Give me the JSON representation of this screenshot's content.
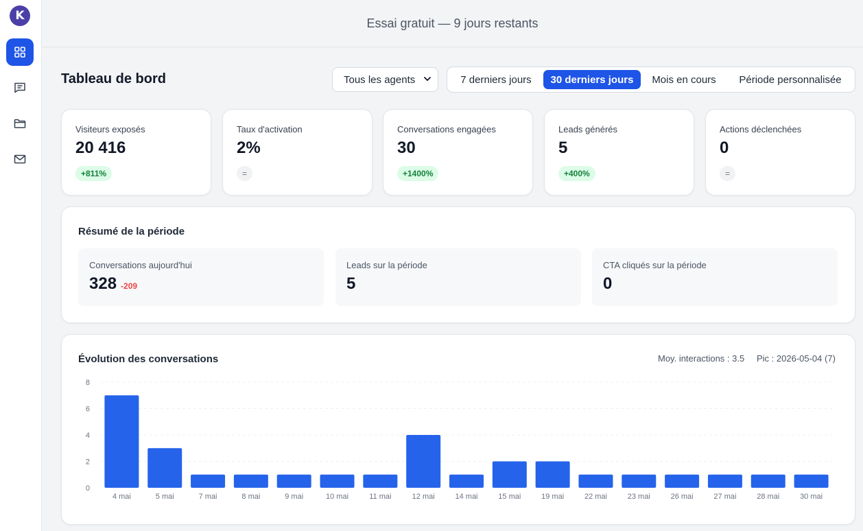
{
  "logo": {
    "letter": "K"
  },
  "sidebar": {
    "items": [
      {
        "icon": "grid-icon",
        "active": true
      },
      {
        "icon": "chat-icon",
        "active": false
      },
      {
        "icon": "folder-icon",
        "active": false
      },
      {
        "icon": "mail-icon",
        "active": false
      }
    ]
  },
  "banner": {
    "text": "Essai gratuit — 9 jours restants"
  },
  "header": {
    "title": "Tableau de bord",
    "agent_select": "Tous les agents",
    "periods": [
      "7 derniers jours",
      "30 derniers jours",
      "Mois en cours",
      "Période personnalisée"
    ],
    "active_period": "30 derniers jours"
  },
  "kpis": [
    {
      "label": "Visiteurs exposés",
      "value": "20 416",
      "badge": "+811%",
      "trend": "up"
    },
    {
      "label": "Taux d'activation",
      "value": "2%",
      "badge": "=",
      "trend": "flat"
    },
    {
      "label": "Conversations engagées",
      "value": "30",
      "badge": "+1400%",
      "trend": "up"
    },
    {
      "label": "Leads générés",
      "value": "5",
      "badge": "+400%",
      "trend": "up"
    },
    {
      "label": "Actions déclenchées",
      "value": "0",
      "badge": "=",
      "trend": "flat"
    }
  ],
  "summary": {
    "title": "Résumé de la période",
    "items": [
      {
        "label": "Conversations aujourd'hui",
        "value": "328",
        "delta": "-209"
      },
      {
        "label": "Leads sur la période",
        "value": "5",
        "delta": ""
      },
      {
        "label": "CTA cliqués sur la période",
        "value": "0",
        "delta": ""
      }
    ]
  },
  "chart": {
    "title": "Évolution des conversations",
    "avg_label": "Moy. interactions : 3.5",
    "peak_label": "Pic : 2026-05-04 (7)"
  },
  "colors": {
    "accent": "#1f55e6",
    "bar": "#2563eb",
    "positive": "#15803d",
    "negative": "#ef4444"
  },
  "chart_data": {
    "type": "bar",
    "categories": [
      "4 mai",
      "5 mai",
      "7 mai",
      "8 mai",
      "9 mai",
      "10 mai",
      "11 mai",
      "12 mai",
      "14 mai",
      "15 mai",
      "19 mai",
      "22 mai",
      "23 mai",
      "26 mai",
      "27 mai",
      "28 mai",
      "30 mai"
    ],
    "values": [
      7,
      3,
      1,
      1,
      1,
      1,
      1,
      4,
      1,
      2,
      2,
      1,
      1,
      1,
      1,
      1,
      1
    ],
    "ylim": [
      0,
      8
    ],
    "yticks": [
      0,
      2,
      4,
      6,
      8
    ],
    "title": "Évolution des conversations",
    "xlabel": "",
    "ylabel": "",
    "grid": true
  }
}
